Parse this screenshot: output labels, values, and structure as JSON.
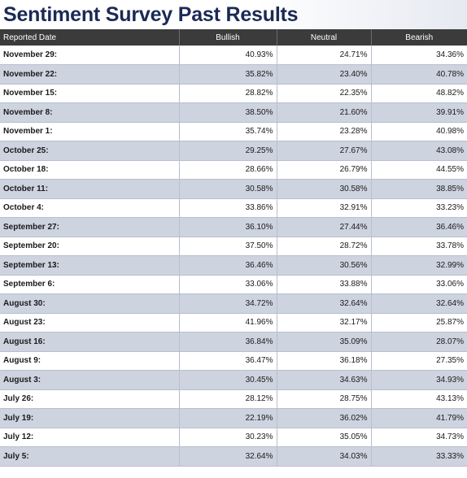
{
  "title": "Sentiment Survey Past Results",
  "columns": [
    "Reported Date",
    "Bullish",
    "Neutral",
    "Bearish"
  ],
  "rows": [
    {
      "date": "November 29:",
      "bullish": "40.93%",
      "neutral": "24.71%",
      "bearish": "34.36%"
    },
    {
      "date": "November 22:",
      "bullish": "35.82%",
      "neutral": "23.40%",
      "bearish": "40.78%"
    },
    {
      "date": "November 15:",
      "bullish": "28.82%",
      "neutral": "22.35%",
      "bearish": "48.82%"
    },
    {
      "date": "November 8:",
      "bullish": "38.50%",
      "neutral": "21.60%",
      "bearish": "39.91%"
    },
    {
      "date": "November 1:",
      "bullish": "35.74%",
      "neutral": "23.28%",
      "bearish": "40.98%"
    },
    {
      "date": "October 25:",
      "bullish": "29.25%",
      "neutral": "27.67%",
      "bearish": "43.08%"
    },
    {
      "date": "October 18:",
      "bullish": "28.66%",
      "neutral": "26.79%",
      "bearish": "44.55%"
    },
    {
      "date": "October 11:",
      "bullish": "30.58%",
      "neutral": "30.58%",
      "bearish": "38.85%"
    },
    {
      "date": "October 4:",
      "bullish": "33.86%",
      "neutral": "32.91%",
      "bearish": "33.23%"
    },
    {
      "date": "September 27:",
      "bullish": "36.10%",
      "neutral": "27.44%",
      "bearish": "36.46%"
    },
    {
      "date": "September 20:",
      "bullish": "37.50%",
      "neutral": "28.72%",
      "bearish": "33.78%"
    },
    {
      "date": "September 13:",
      "bullish": "36.46%",
      "neutral": "30.56%",
      "bearish": "32.99%"
    },
    {
      "date": "September 6:",
      "bullish": "33.06%",
      "neutral": "33.88%",
      "bearish": "33.06%"
    },
    {
      "date": "August 30:",
      "bullish": "34.72%",
      "neutral": "32.64%",
      "bearish": "32.64%"
    },
    {
      "date": "August 23:",
      "bullish": "41.96%",
      "neutral": "32.17%",
      "bearish": "25.87%"
    },
    {
      "date": "August 16:",
      "bullish": "36.84%",
      "neutral": "35.09%",
      "bearish": "28.07%"
    },
    {
      "date": "August 9:",
      "bullish": "36.47%",
      "neutral": "36.18%",
      "bearish": "27.35%"
    },
    {
      "date": "August 3:",
      "bullish": "30.45%",
      "neutral": "34.63%",
      "bearish": "34.93%"
    },
    {
      "date": "July 26:",
      "bullish": "28.12%",
      "neutral": "28.75%",
      "bearish": "43.13%"
    },
    {
      "date": "July 19:",
      "bullish": "22.19%",
      "neutral": "36.02%",
      "bearish": "41.79%"
    },
    {
      "date": "July 12:",
      "bullish": "30.23%",
      "neutral": "35.05%",
      "bearish": "34.73%"
    },
    {
      "date": "July 5:",
      "bullish": "32.64%",
      "neutral": "34.03%",
      "bearish": "33.33%"
    }
  ]
}
